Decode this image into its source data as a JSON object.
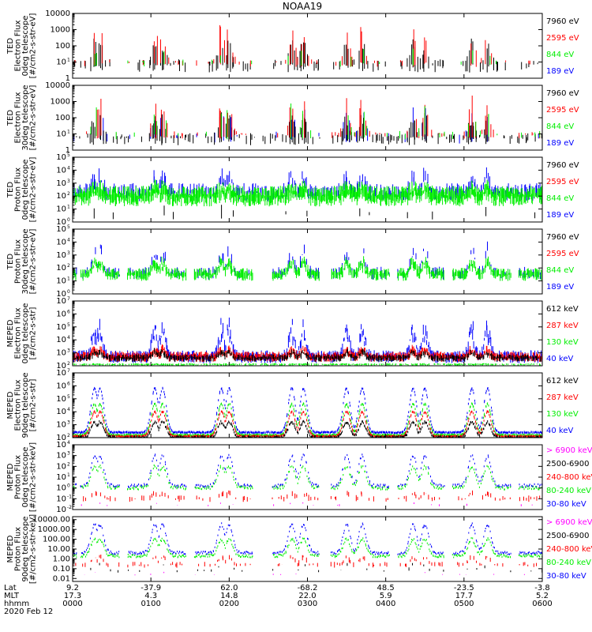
{
  "colors": {
    "black": "#000000",
    "red": "#ff0000",
    "green": "#00ee00",
    "blue": "#0000ff",
    "magenta": "#ff00ff"
  },
  "chart_data": {
    "type": "line",
    "title": "NOAA19",
    "x_range_hours": [
      0,
      6
    ],
    "x_tick_hours": [
      0,
      1,
      2,
      3,
      4,
      5,
      6
    ],
    "panels": [
      {
        "id": "ted-e-0",
        "ylabel": [
          "TED",
          "Electron Flux",
          "0deg telescope",
          "[#/cm2-s-str-eV]"
        ],
        "ylim": [
          1,
          10000
        ],
        "log": true,
        "ytick_labels": [
          "1",
          "10",
          "100",
          "1000",
          "10000"
        ],
        "ytick_exps": [
          0,
          1,
          2,
          3,
          4
        ],
        "legend": [
          {
            "label": "7960 eV",
            "color": "black"
          },
          {
            "label": "2595 eV",
            "color": "red"
          },
          {
            "label": "844 eV",
            "color": "green"
          },
          {
            "label": "189 eV",
            "color": "blue"
          }
        ],
        "series": [
          {
            "name": "black",
            "style": "spikes",
            "base": 0.9,
            "peak": 2.4,
            "spread": 0.55,
            "density": 260,
            "gaps": true,
            "seed": 11
          },
          {
            "name": "red",
            "style": "spikes",
            "base": 1.0,
            "peak": 3.6,
            "spread": 0.3,
            "density": 140,
            "gaps": true,
            "seed": 12
          },
          {
            "name": "green",
            "style": "spikes",
            "base": 1.0,
            "peak": 2.0,
            "spread": 0.3,
            "density": 40,
            "gaps": true,
            "seed": 13
          }
        ]
      },
      {
        "id": "ted-e-90",
        "ylabel": [
          "TED",
          "Electron Flux",
          "30deg telescope",
          "[#/cm2-s-str-eV]"
        ],
        "ylim": [
          1,
          10000
        ],
        "log": true,
        "ytick_labels": [
          "1",
          "10",
          "100",
          "1000",
          "10000"
        ],
        "ytick_exps": [
          0,
          1,
          2,
          3,
          4
        ],
        "legend": [
          {
            "label": "7960 eV",
            "color": "black"
          },
          {
            "label": "2595 eV",
            "color": "red"
          },
          {
            "label": "844 eV",
            "color": "green"
          },
          {
            "label": "189 eV",
            "color": "blue"
          }
        ],
        "series": [
          {
            "name": "blue",
            "style": "spikes",
            "base": 0.9,
            "peak": 2.6,
            "spread": 0.5,
            "density": 90,
            "gaps": true,
            "seed": 21
          },
          {
            "name": "black",
            "style": "spikes",
            "base": 0.8,
            "peak": 2.2,
            "spread": 0.5,
            "density": 320,
            "gaps": false,
            "seed": 22
          },
          {
            "name": "red",
            "style": "spikes",
            "base": 1.0,
            "peak": 3.5,
            "spread": 0.3,
            "density": 150,
            "gaps": true,
            "seed": 23
          },
          {
            "name": "green",
            "style": "spikes",
            "base": 1.0,
            "peak": 3.0,
            "spread": 0.35,
            "density": 80,
            "gaps": true,
            "seed": 24
          }
        ]
      },
      {
        "id": "ted-p-0",
        "ylabel": [
          "TED",
          "Proton Flux",
          "0deg telescope",
          "[#/cm2-s-str-eV]"
        ],
        "ylim": [
          1,
          100000
        ],
        "log": true,
        "ytick_labels": [
          "10",
          "10",
          "10",
          "10",
          "10",
          "10"
        ],
        "ytick_exps": [
          0,
          1,
          2,
          3,
          4,
          5
        ],
        "legend": [
          {
            "label": "7960 eV",
            "color": "black"
          },
          {
            "label": "2595 eV",
            "color": "red"
          },
          {
            "label": "844 eV",
            "color": "green"
          },
          {
            "label": "189 eV",
            "color": "blue"
          }
        ],
        "series": [
          {
            "name": "blue",
            "style": "noise",
            "base": 2.3,
            "peak": 3.8,
            "spread": 0.7,
            "density": 300,
            "gaps": false,
            "seed": 31
          },
          {
            "name": "green",
            "style": "noise",
            "base": 2.0,
            "peak": 2.6,
            "spread": 0.8,
            "density": 700,
            "gaps": false,
            "seed": 32
          },
          {
            "name": "black",
            "style": "spikes",
            "base": 0.6,
            "peak": 1.4,
            "spread": 0.4,
            "density": 40,
            "gaps": true,
            "seed": 33
          }
        ]
      },
      {
        "id": "ted-p-90",
        "ylabel": [
          "TED",
          "Proton Flux",
          "30deg telescope",
          "[#/cm2-s-str-eV]"
        ],
        "ylim": [
          1,
          100000
        ],
        "log": true,
        "ytick_labels": [
          "10",
          "10",
          "10",
          "10",
          "10",
          "10"
        ],
        "ytick_exps": [
          0,
          1,
          2,
          3,
          4,
          5
        ],
        "legend": [
          {
            "label": "7960 eV",
            "color": "black"
          },
          {
            "label": "2595 eV",
            "color": "red"
          },
          {
            "label": "844 eV",
            "color": "green"
          },
          {
            "label": "189 eV",
            "color": "blue"
          }
        ],
        "series": [
          {
            "name": "blue",
            "style": "noise",
            "base": 1.6,
            "peak": 3.7,
            "spread": 0.5,
            "density": 200,
            "gaps": true,
            "seed": 41
          },
          {
            "name": "green",
            "style": "noise",
            "base": 1.5,
            "peak": 2.6,
            "spread": 0.5,
            "density": 600,
            "gaps": true,
            "seed": 42
          }
        ]
      },
      {
        "id": "meped-e-0",
        "ylabel": [
          "MEPED",
          "Electron Flux",
          "0deg telescope",
          "[#/cm2-s-str]"
        ],
        "ylim": [
          100,
          10000000
        ],
        "log": true,
        "ytick_labels": [
          "10",
          "10",
          "10",
          "10",
          "10",
          "10"
        ],
        "ytick_exps": [
          2,
          3,
          4,
          5,
          6,
          7
        ],
        "legend": [
          {
            "label": "612 keV",
            "color": "black"
          },
          {
            "label": "287 keV",
            "color": "red"
          },
          {
            "label": "130 keV",
            "color": "green"
          },
          {
            "label": "40 keV",
            "color": "blue"
          }
        ],
        "series": [
          {
            "name": "blue",
            "style": "noise",
            "base": 2.7,
            "peak": 5.4,
            "spread": 0.5,
            "density": 500,
            "gaps": false,
            "seed": 51
          },
          {
            "name": "red",
            "style": "noise",
            "base": 2.7,
            "peak": 3.3,
            "spread": 0.4,
            "density": 600,
            "gaps": false,
            "seed": 52
          },
          {
            "name": "black",
            "style": "noise",
            "base": 2.6,
            "peak": 3.1,
            "spread": 0.3,
            "density": 500,
            "gaps": false,
            "seed": 53
          },
          {
            "name": "green",
            "style": "floor",
            "base": 2.1,
            "peak": 2.1,
            "spread": 0.1,
            "density": 600,
            "gaps": false,
            "seed": 54
          }
        ]
      },
      {
        "id": "meped-e-90",
        "ylabel": [
          "MEPED",
          "Electron Flux",
          "90deg telescope",
          "[#/cm2-s-str]"
        ],
        "ylim": [
          100,
          10000000
        ],
        "log": true,
        "ytick_labels": [
          "10",
          "10",
          "10",
          "10",
          "10",
          "10"
        ],
        "ytick_exps": [
          2,
          3,
          4,
          5,
          6,
          7
        ],
        "legend": [
          {
            "label": "612 keV",
            "color": "black"
          },
          {
            "label": "287 keV",
            "color": "red"
          },
          {
            "label": "130 keV",
            "color": "green"
          },
          {
            "label": "40 keV",
            "color": "blue"
          }
        ],
        "series": [
          {
            "name": "blue",
            "style": "hump",
            "base": 2.4,
            "peak": 5.8,
            "spread": 0.1,
            "density": 600,
            "gaps": false,
            "seed": 61
          },
          {
            "name": "green",
            "style": "hump",
            "base": 2.2,
            "peak": 4.6,
            "spread": 0.1,
            "density": 600,
            "gaps": false,
            "seed": 62
          },
          {
            "name": "red",
            "style": "hump",
            "base": 2.1,
            "peak": 4.0,
            "spread": 0.1,
            "density": 600,
            "gaps": false,
            "seed": 63
          },
          {
            "name": "black",
            "style": "hump",
            "base": 2.0,
            "peak": 3.2,
            "spread": 0.2,
            "density": 600,
            "gaps": false,
            "seed": 64
          }
        ]
      },
      {
        "id": "meped-p-0",
        "ylabel": [
          "MEPED",
          "Proton Flux",
          "0deg telescope",
          "[#/cm2-s-str-keV]"
        ],
        "ylim": [
          0.01,
          10000
        ],
        "log": true,
        "ytick_labels": [
          "10",
          "10",
          "10",
          "10",
          "10",
          "10",
          "10"
        ],
        "ytick_exps": [
          -2,
          -1,
          0,
          1,
          2,
          3,
          4
        ],
        "legend": [
          {
            "label": "> 6900 keV",
            "color": "magenta"
          },
          {
            "label": "2500-6900",
            "color": "black"
          },
          {
            "label": "240-800 keV",
            "color": "red"
          },
          {
            "label": "80-240 keV",
            "color": "green"
          },
          {
            "label": "30-80 keV",
            "color": "blue"
          }
        ],
        "series": [
          {
            "name": "blue",
            "style": "hump",
            "base": 0.2,
            "peak": 3.0,
            "spread": 0.3,
            "density": 400,
            "gaps": true,
            "seed": 71
          },
          {
            "name": "green",
            "style": "hump",
            "base": 0.0,
            "peak": 2.0,
            "spread": 0.3,
            "density": 400,
            "gaps": true,
            "seed": 72
          },
          {
            "name": "red",
            "style": "floor",
            "base": -1.0,
            "peak": -0.5,
            "spread": 0.3,
            "density": 200,
            "gaps": true,
            "seed": 73
          },
          {
            "name": "magenta",
            "style": "floor",
            "base": -1.6,
            "peak": -1.4,
            "spread": 0.1,
            "density": 30,
            "gaps": true,
            "seed": 74
          }
        ]
      },
      {
        "id": "meped-p-90",
        "ylabel": [
          "MEPED",
          "Proton Flux",
          "90deg telescope",
          "[#/cm2-s-str-keV]"
        ],
        "ylim": [
          0.005,
          20000
        ],
        "log": true,
        "ytick_labels": [
          "0.01",
          "0.10",
          "1.00",
          "10.00",
          "100.00",
          "1000.00",
          "10000.00"
        ],
        "ytick_exps": [
          -2,
          -1,
          0,
          1,
          2,
          3,
          4
        ],
        "legend": [
          {
            "label": "> 6900 keV",
            "color": "magenta"
          },
          {
            "label": "2500-6900",
            "color": "black"
          },
          {
            "label": "240-800 keV",
            "color": "red"
          },
          {
            "label": "80-240 keV",
            "color": "green"
          },
          {
            "label": "30-80 keV",
            "color": "blue"
          }
        ],
        "series": [
          {
            "name": "blue",
            "style": "hump",
            "base": 0.6,
            "peak": 3.5,
            "spread": 0.3,
            "density": 500,
            "gaps": true,
            "seed": 81
          },
          {
            "name": "green",
            "style": "hump",
            "base": 0.3,
            "peak": 2.0,
            "spread": 0.3,
            "density": 500,
            "gaps": true,
            "seed": 82
          },
          {
            "name": "red",
            "style": "floor",
            "base": -0.6,
            "peak": 0.2,
            "spread": 0.3,
            "density": 200,
            "gaps": true,
            "seed": 83
          },
          {
            "name": "black",
            "style": "floor",
            "base": -1.2,
            "peak": -0.6,
            "spread": 0.2,
            "density": 60,
            "gaps": true,
            "seed": 84
          },
          {
            "name": "magenta",
            "style": "floor",
            "base": -1.6,
            "peak": -1.4,
            "spread": 0.1,
            "density": 30,
            "gaps": true,
            "seed": 85
          }
        ]
      }
    ],
    "ephemeris": {
      "row_labels": [
        "Lat",
        "MLT",
        "hhmm"
      ],
      "lat": [
        "9.2",
        "-37.9",
        "62.0",
        "-68.2",
        "48.5",
        "-23.5",
        "-3.8"
      ],
      "mlt": [
        "17.3",
        "4.3",
        "14.8",
        "22.0",
        "5.9",
        "17.7",
        "5.2"
      ],
      "hhmm": [
        "0000",
        "0100",
        "0200",
        "0300",
        "0400",
        "0500",
        "0600"
      ],
      "date": "2020 Feb 12"
    }
  }
}
